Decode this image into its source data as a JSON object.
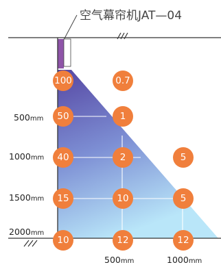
{
  "title": "空气幕帘机JAT—04",
  "colors": {
    "marker": "#f07f3c",
    "gradient_top": "#5a4aa6",
    "gradient_bottom": "#b8e4f8",
    "device": "#8e54a8"
  },
  "y_labels": [
    {
      "num": "500",
      "unit": "mm"
    },
    {
      "num": "1000",
      "unit": "mm"
    },
    {
      "num": "1500",
      "unit": "mm"
    },
    {
      "num": "2000",
      "unit": "mm"
    }
  ],
  "x_labels": [
    {
      "num": "500",
      "unit": "mm"
    },
    {
      "num": "1000",
      "unit": "mm"
    }
  ],
  "rows": [
    {
      "values": [
        "100",
        "0.7",
        ""
      ]
    },
    {
      "values": [
        "50",
        "1",
        ""
      ]
    },
    {
      "values": [
        "40",
        "2",
        "5"
      ]
    },
    {
      "values": [
        "15",
        "10",
        "5"
      ]
    },
    {
      "values": [
        "10",
        "12",
        "12"
      ]
    }
  ]
}
